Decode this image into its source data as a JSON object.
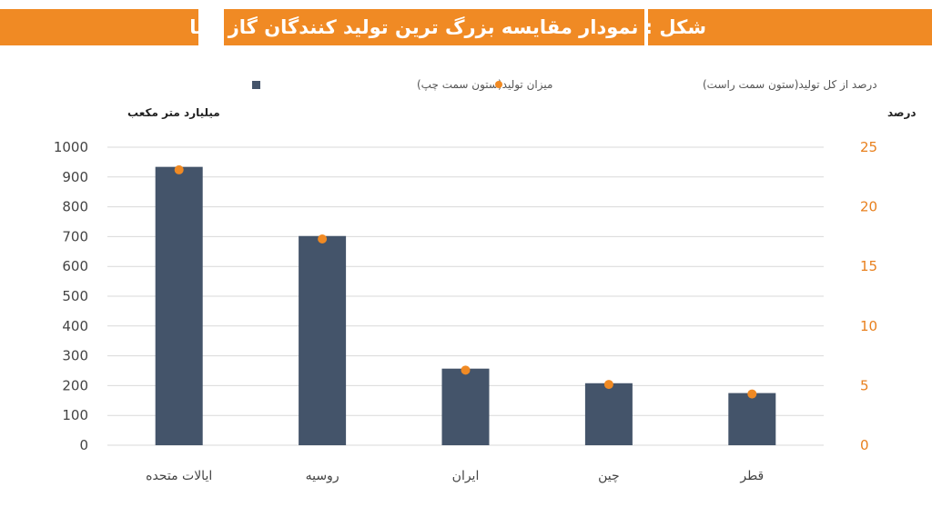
{
  "header": {
    "title": "شکل : نمودار مقایسه بزرگ ترین تولید کنندگان گاز دنیا"
  },
  "colors": {
    "bar": "#44546a",
    "dot": "#f08a24",
    "header": "#f08a24",
    "right_axis": "#e8801e"
  },
  "chart_data": {
    "type": "bar",
    "title": "شکل : نمودار مقایسه بزرگ ترین تولید کنندگان گاز دنیا",
    "categories": [
      "ایالات متحده",
      "روسیه",
      "ایران",
      "چین",
      "قطر"
    ],
    "series": [
      {
        "name": "میزان تولید(ستون سمت چپ)",
        "type": "bar",
        "axis": "left",
        "values": [
          934,
          702,
          257,
          208,
          175
        ]
      },
      {
        "name": "درصد از کل تولید(ستون سمت راست)",
        "type": "scatter",
        "axis": "right",
        "values": [
          23.1,
          17.3,
          6.3,
          5.1,
          4.3
        ]
      }
    ],
    "ylabel": "میلیارد متر مکعب",
    "y2label": "درصد",
    "ylim": [
      0,
      1000
    ],
    "y2lim": [
      0,
      25
    ],
    "yticks": [
      0,
      100,
      200,
      300,
      400,
      500,
      600,
      700,
      800,
      900,
      1000
    ],
    "y2ticks": [
      0,
      5,
      10,
      15,
      20,
      25
    ],
    "grid": true,
    "legend": "top"
  }
}
